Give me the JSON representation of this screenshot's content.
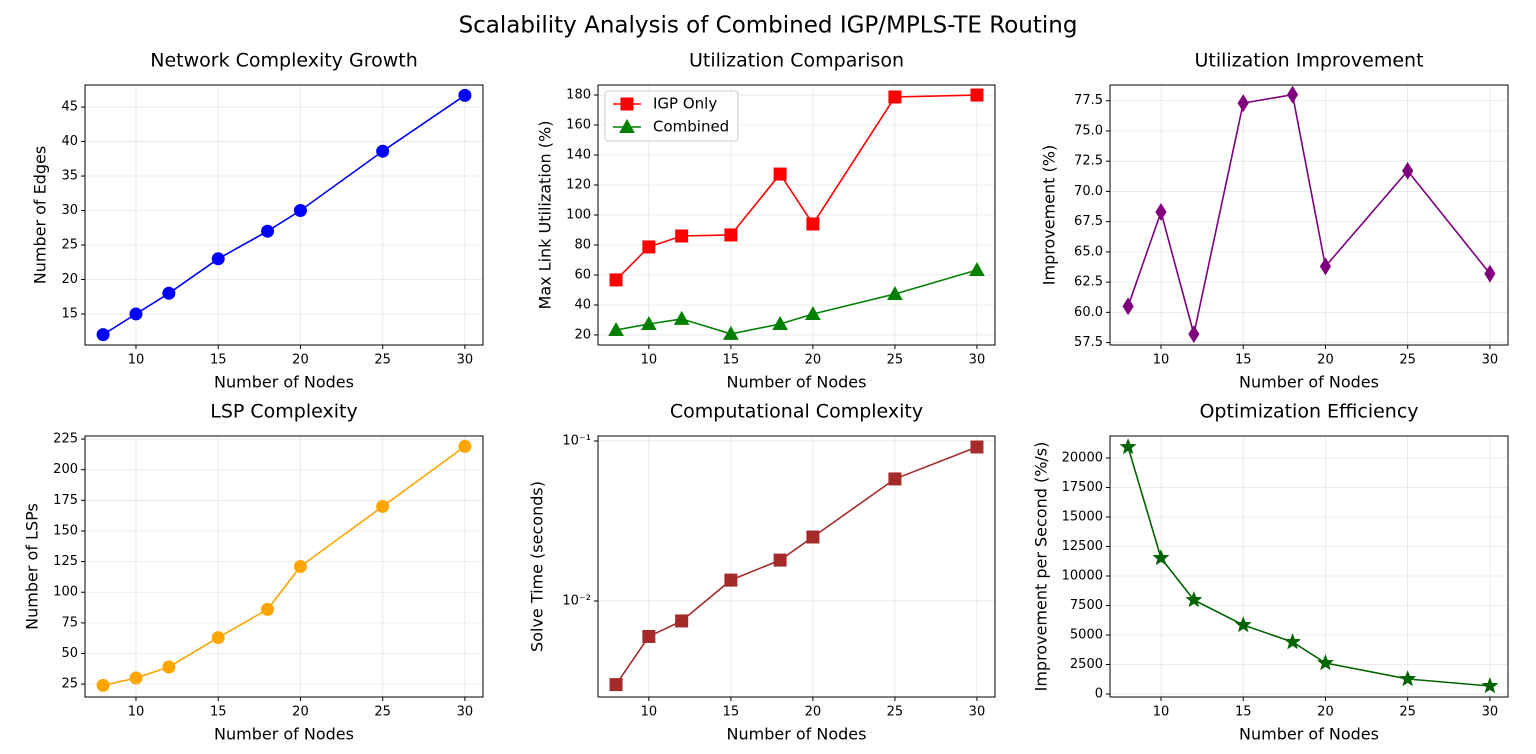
{
  "title": "Scalability Analysis of Combined IGP/MPLS-TE Routing",
  "chart_data": [
    {
      "type": "line",
      "title": "Network Complexity Growth",
      "xlabel": "Number of Nodes",
      "ylabel": "Number of Edges",
      "x": [
        8,
        10,
        12,
        15,
        18,
        20,
        25,
        30
      ],
      "series": [
        {
          "name": "Edges",
          "color": "#0000ff",
          "marker": "circle",
          "values": [
            12,
            15,
            18,
            23,
            27,
            30,
            38.6,
            46.7
          ]
        }
      ],
      "xlim": [
        6.9,
        31.1
      ],
      "ylim": [
        10.5,
        48.2
      ],
      "xticks": [
        10,
        15,
        20,
        25,
        30
      ],
      "yticks": [
        15,
        20,
        25,
        30,
        35,
        40,
        45
      ],
      "grid": true
    },
    {
      "type": "line",
      "title": "Utilization Comparison",
      "xlabel": "Number of Nodes",
      "ylabel": "Max Link Utilization (%)",
      "x": [
        8,
        10,
        12,
        15,
        18,
        20,
        25,
        30
      ],
      "series": [
        {
          "name": "IGP Only",
          "color": "#ff0000",
          "marker": "square",
          "values": [
            56.7,
            78.7,
            86,
            86.7,
            127.3,
            94,
            178.7,
            180
          ]
        },
        {
          "name": "Combined",
          "color": "#008000",
          "marker": "triangle",
          "values": [
            23.3,
            27.3,
            30.7,
            20.7,
            27.3,
            34,
            47.3,
            63.3
          ]
        }
      ],
      "xlim": [
        6.9,
        31.1
      ],
      "ylim": [
        13.3,
        186.7
      ],
      "xticks": [
        10,
        15,
        20,
        25,
        30
      ],
      "yticks": [
        20,
        40,
        60,
        80,
        100,
        120,
        140,
        160,
        180
      ],
      "grid": true,
      "legend": "upper left"
    },
    {
      "type": "line",
      "title": "Utilization Improvement",
      "xlabel": "Number of Nodes",
      "ylabel": "Improvement (%)",
      "x": [
        8,
        10,
        12,
        15,
        18,
        20,
        25,
        30
      ],
      "series": [
        {
          "name": "Improvement",
          "color": "#800080",
          "marker": "diamond",
          "values": [
            60.5,
            68.3,
            58.2,
            77.3,
            78.0,
            63.8,
            71.7,
            63.2
          ]
        }
      ],
      "xlim": [
        6.9,
        31.1
      ],
      "ylim": [
        57.3,
        78.8
      ],
      "xticks": [
        10,
        15,
        20,
        25,
        30
      ],
      "yticks": [
        57.5,
        {
          "value": 60,
          "label": "60.0"
        },
        62.5,
        {
          "value": 65,
          "label": "65.0"
        },
        67.5,
        {
          "value": 70,
          "label": "70.0"
        },
        72.5,
        {
          "value": 75,
          "label": "75.0"
        },
        77.5
      ],
      "grid": true
    },
    {
      "type": "line",
      "title": "LSP Complexity",
      "xlabel": "Number of Nodes",
      "ylabel": "Number of LSPs",
      "x": [
        8,
        10,
        12,
        15,
        18,
        20,
        25,
        30
      ],
      "series": [
        {
          "name": "LSPs",
          "color": "#ffa500",
          "marker": "circle",
          "values": [
            24,
            30,
            39,
            63,
            86,
            121,
            170,
            219
          ]
        }
      ],
      "xlim": [
        6.9,
        31.1
      ],
      "ylim": [
        14.5,
        227.5
      ],
      "xticks": [
        10,
        15,
        20,
        25,
        30
      ],
      "yticks": [
        25,
        50,
        75,
        100,
        125,
        150,
        175,
        200,
        225
      ],
      "grid": true
    },
    {
      "type": "line",
      "title": "Computational Complexity",
      "xlabel": "Number of Nodes",
      "ylabel": "Solve Time (seconds)",
      "x": [
        8,
        10,
        12,
        15,
        18,
        20,
        25,
        30
      ],
      "series": [
        {
          "name": "Solve Time",
          "color": "#a52a2a",
          "marker": "square",
          "values": [
            0.003,
            0.006,
            0.0075,
            0.0135,
            0.018,
            0.0251,
            0.0579,
            0.0917
          ]
        }
      ],
      "xlim": [
        6.9,
        31.1
      ],
      "ylim": [
        0.00251,
        0.1074
      ],
      "yscale": "log",
      "xticks": [
        10,
        15,
        20,
        25,
        30
      ],
      "yticks": [
        {
          "value": 0.01,
          "label": "10⁻²"
        },
        {
          "value": 0.1,
          "label": "10⁻¹"
        }
      ],
      "grid": true
    },
    {
      "type": "line",
      "title": "Optimization Efficiency",
      "xlabel": "Number of Nodes",
      "ylabel": "Improvement per Second (%/s)",
      "x": [
        8,
        10,
        12,
        15,
        18,
        20,
        25,
        30
      ],
      "series": [
        {
          "name": "Efficiency",
          "color": "#006400",
          "marker": "star",
          "values": [
            20932,
            11525,
            7966,
            5847,
            4407,
            2627,
            1271,
            678
          ]
        }
      ],
      "xlim": [
        6.9,
        31.1
      ],
      "ylim": [
        -254,
        21864
      ],
      "xticks": [
        10,
        15,
        20,
        25,
        30
      ],
      "yticks": [
        0,
        2500,
        5000,
        7500,
        10000,
        12500,
        15000,
        17500,
        20000
      ],
      "grid": true
    }
  ]
}
